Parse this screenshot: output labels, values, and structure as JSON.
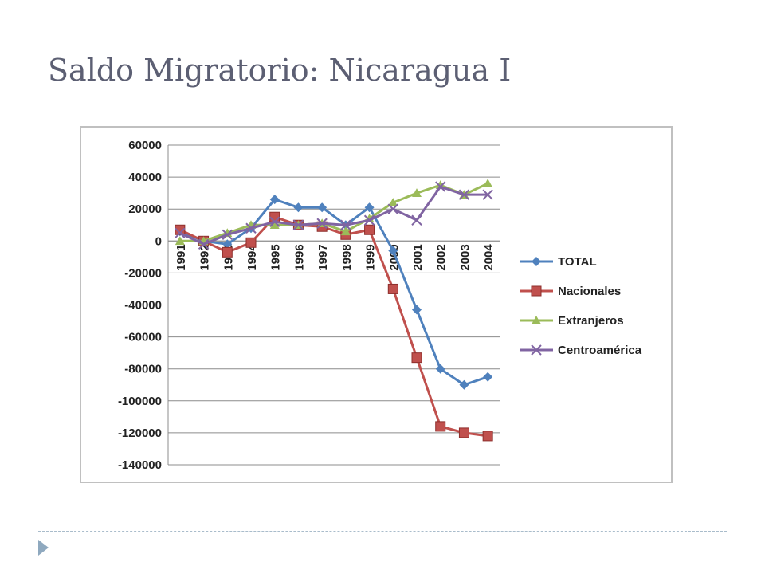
{
  "slide": {
    "title": "Saldo Migratorio: Nicaragua I"
  },
  "chart_data": {
    "type": "line",
    "title": "",
    "xlabel": "",
    "ylabel": "",
    "ylim": [
      -140000,
      60000
    ],
    "yticks": [
      60000,
      40000,
      20000,
      0,
      -20000,
      -40000,
      -60000,
      -80000,
      -100000,
      -120000,
      -140000
    ],
    "grid": true,
    "legend_position": "right",
    "categories": [
      "1991",
      "1992",
      "1993",
      "1994",
      "1995",
      "1996",
      "1997",
      "1998",
      "1999",
      "2000",
      "2001",
      "2002",
      "2003",
      "2004"
    ],
    "series": [
      {
        "name": "TOTAL",
        "color": "#4f81bd",
        "marker": "diamond",
        "values": [
          6000,
          0,
          -2000,
          8000,
          26000,
          21000,
          21000,
          10000,
          21000,
          -6000,
          -43000,
          -80000,
          -90000,
          -85000
        ]
      },
      {
        "name": "Nacionales",
        "color": "#c0504d",
        "marker": "square",
        "values": [
          7000,
          0,
          -7000,
          -1000,
          15000,
          10000,
          9000,
          4000,
          7000,
          -30000,
          -73000,
          -116000,
          -120000,
          -122000
        ]
      },
      {
        "name": "Extranjeros",
        "color": "#9bbb59",
        "marker": "triangle",
        "values": [
          0,
          0,
          5000,
          10000,
          10000,
          10000,
          11000,
          6000,
          14000,
          24000,
          30000,
          35000,
          29000,
          36000
        ]
      },
      {
        "name": "Centroamérica",
        "color": "#8064a2",
        "marker": "x",
        "values": [
          5000,
          -2000,
          4000,
          8000,
          12000,
          10000,
          11000,
          10000,
          13000,
          20000,
          13000,
          34000,
          29000,
          29000
        ]
      }
    ]
  }
}
